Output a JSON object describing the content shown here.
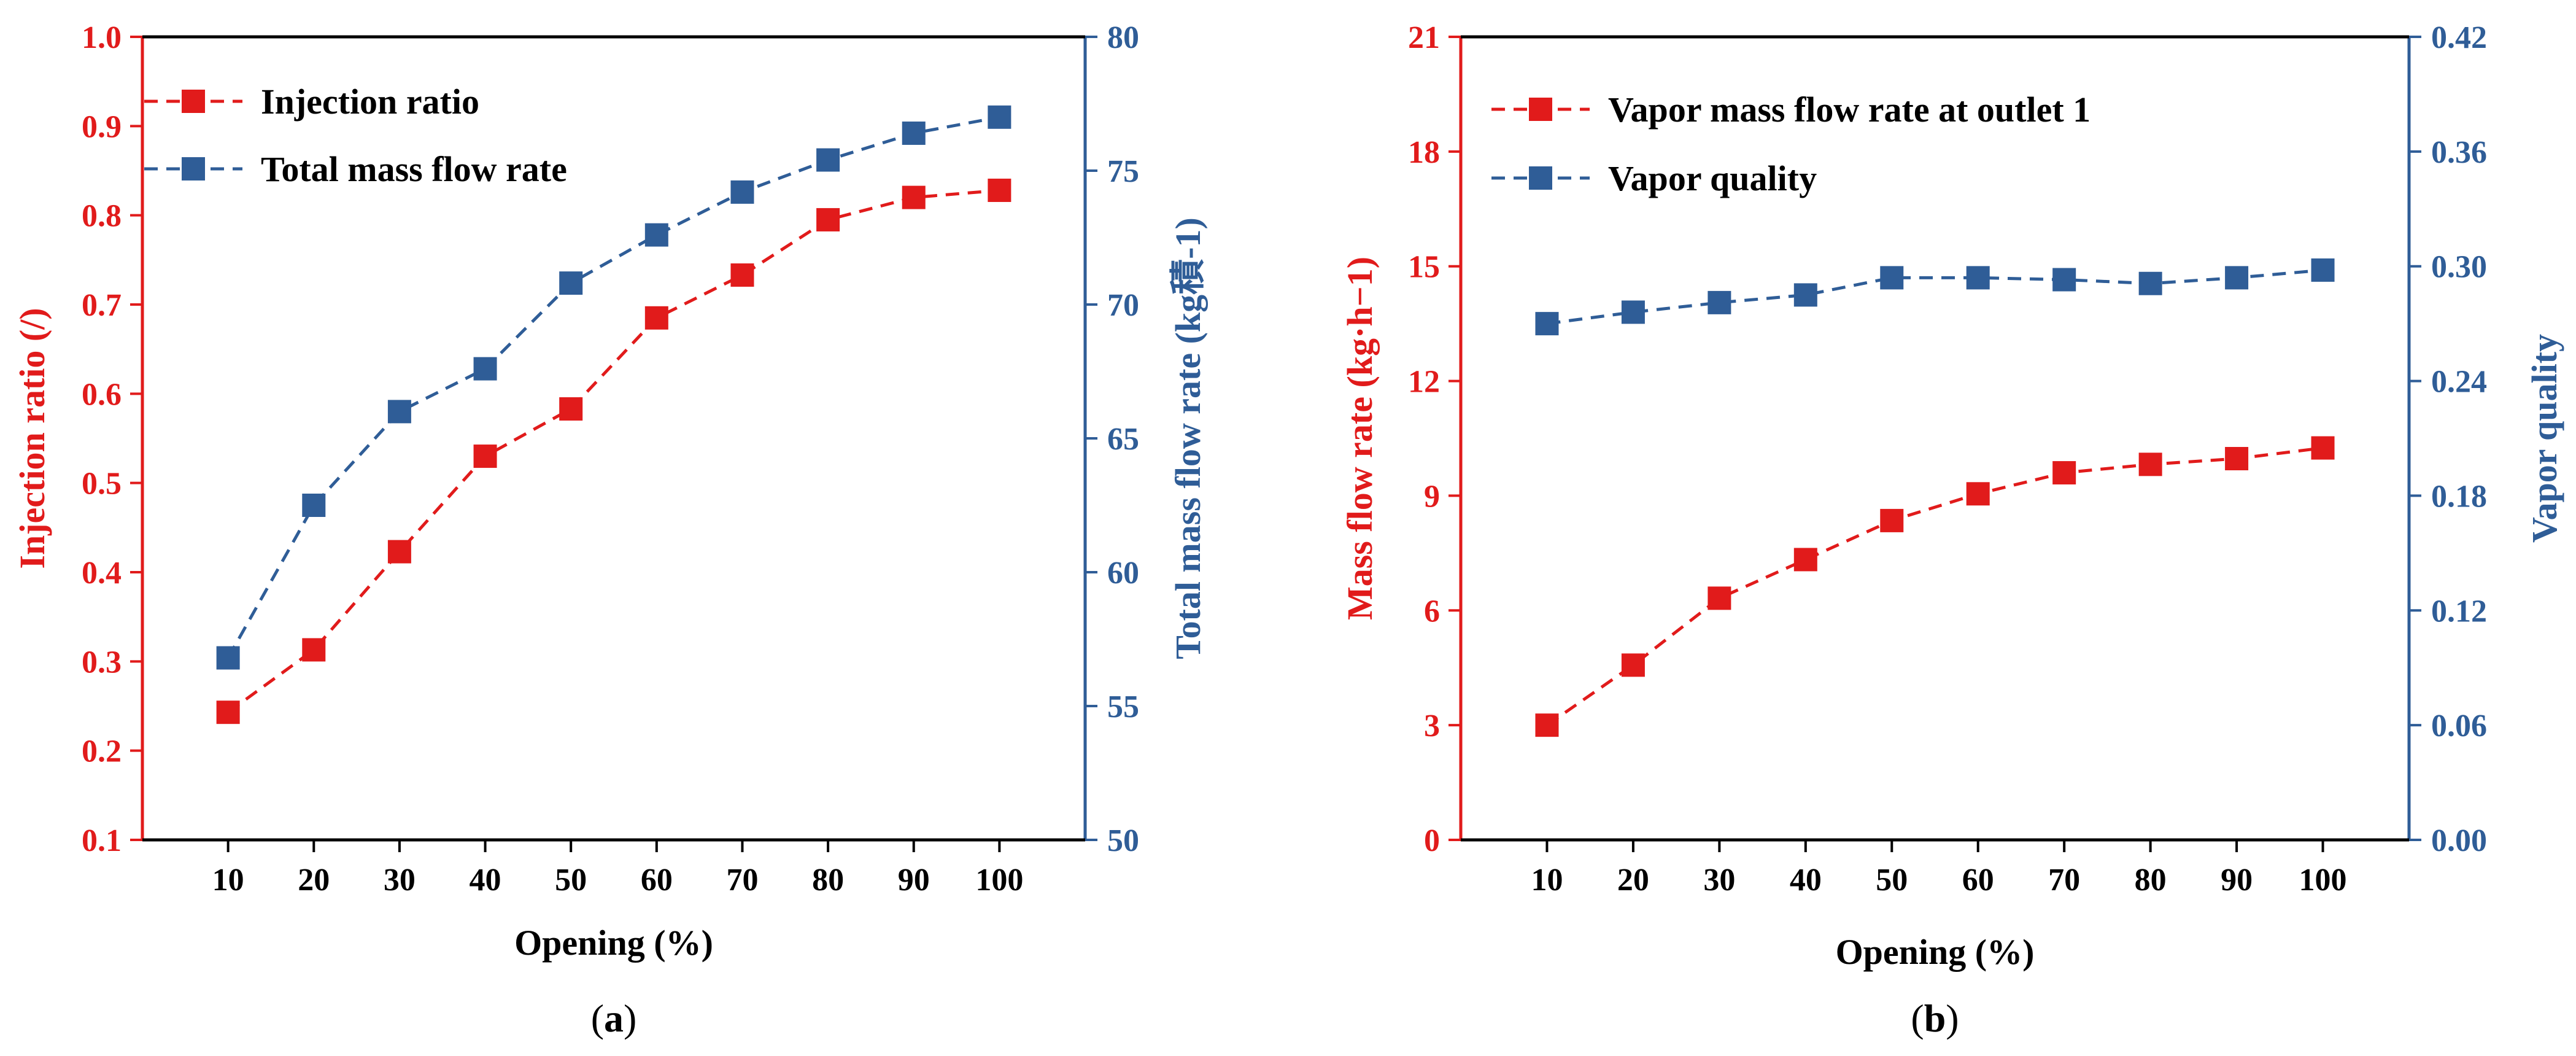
{
  "colors": {
    "left": "#e11b1b",
    "right": "#2f5d97",
    "axis": "#000000"
  },
  "chart_data": [
    {
      "type": "line",
      "panel_label": "a",
      "x": [
        10,
        20,
        30,
        40,
        50,
        60,
        70,
        80,
        90,
        100
      ],
      "x_ticks": [
        "10",
        "20",
        "30",
        "40",
        "50",
        "60",
        "70",
        "80",
        "90",
        "100"
      ],
      "xlabel": "Opening (%)",
      "y_left": {
        "label": "Injection ratio (/)",
        "lim": [
          0.1,
          1.0
        ],
        "ticks": [
          "0.1",
          "0.2",
          "0.3",
          "0.4",
          "0.5",
          "0.6",
          "0.7",
          "0.8",
          "0.9",
          "1.0"
        ]
      },
      "y_right": {
        "label": "Total mass flow rate (kg積-1)",
        "lim": [
          50,
          80
        ],
        "ticks": [
          "50",
          "55",
          "60",
          "65",
          "70",
          "75",
          "80"
        ]
      },
      "series": [
        {
          "name": "Injection ratio",
          "axis": "left",
          "color": "#e11b1b",
          "values": [
            0.243,
            0.313,
            0.423,
            0.53,
            0.583,
            0.685,
            0.733,
            0.795,
            0.82,
            0.828
          ]
        },
        {
          "name": "Total mass flow rate",
          "axis": "right",
          "color": "#2f5d97",
          "values": [
            56.8,
            62.5,
            66.0,
            67.6,
            70.8,
            72.6,
            74.2,
            75.4,
            76.4,
            77.0
          ]
        }
      ],
      "legend_position": "top-left",
      "grid": false
    },
    {
      "type": "line",
      "panel_label": "b",
      "x": [
        10,
        20,
        30,
        40,
        50,
        60,
        70,
        80,
        90,
        100
      ],
      "x_ticks": [
        "10",
        "20",
        "30",
        "40",
        "50",
        "60",
        "70",
        "80",
        "90",
        "100"
      ],
      "xlabel": "Opening (%)",
      "y_left": {
        "label": "Mass flow rate (kg·h−1)",
        "lim": [
          0,
          21
        ],
        "ticks": [
          "0",
          "3",
          "6",
          "9",
          "12",
          "15",
          "18",
          "21"
        ]
      },
      "y_right": {
        "label": "Vapor quality",
        "lim": [
          0,
          0.42
        ],
        "ticks": [
          "0.00",
          "0.06",
          "0.12",
          "0.18",
          "0.24",
          "0.30",
          "0.36",
          "0.42"
        ]
      },
      "series": [
        {
          "name": "Vapor mass flow rate at outlet 1",
          "axis": "left",
          "color": "#e11b1b",
          "values": [
            3.0,
            4.57,
            6.32,
            7.33,
            8.35,
            9.05,
            9.6,
            9.82,
            9.97,
            10.25
          ]
        },
        {
          "name": "Vapor quality",
          "axis": "right",
          "color": "#2f5d97",
          "values": [
            0.27,
            0.276,
            0.281,
            0.285,
            0.294,
            0.294,
            0.293,
            0.291,
            0.294,
            0.298
          ]
        }
      ],
      "legend_position": "top-left",
      "grid": false
    }
  ]
}
